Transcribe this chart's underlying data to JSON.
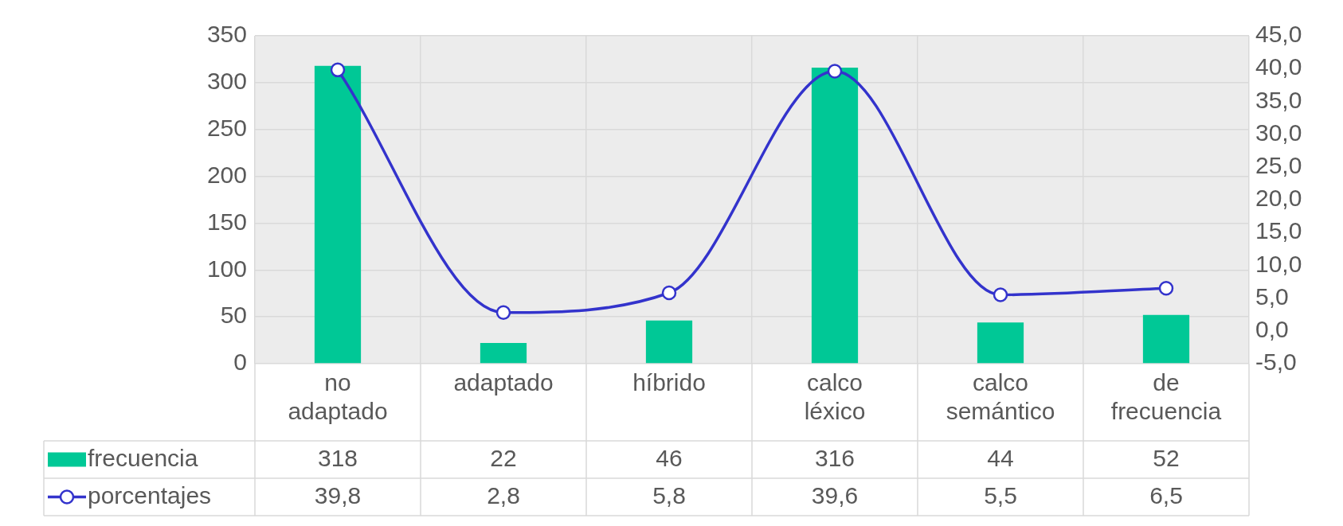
{
  "chart_data": {
    "type": "bar",
    "categories": [
      "no adaptado",
      "adaptado",
      "híbrido",
      "calco léxico",
      "calco semántico",
      "de frecuencia"
    ],
    "series": [
      {
        "name": "frecuencia",
        "color": "#00c896",
        "values": [
          318,
          22,
          46,
          316,
          44,
          52
        ],
        "value_labels": [
          "318",
          "22",
          "46",
          "316",
          "44",
          "52"
        ]
      },
      {
        "name": "porcentajes",
        "type": "line",
        "axis": "y2",
        "color": "#3333cc",
        "values": [
          39.8,
          2.8,
          5.8,
          39.6,
          5.5,
          6.5
        ],
        "value_labels": [
          "39,8",
          "2,8",
          "5,8",
          "39,6",
          "5,5",
          "6,5"
        ]
      }
    ],
    "ylim": [
      0,
      350
    ],
    "yticks": [
      0,
      50,
      100,
      150,
      200,
      250,
      300,
      350
    ],
    "y2lim": [
      -5,
      45
    ],
    "y2ticks": [
      {
        "value": -5,
        "label": "-5,0"
      },
      {
        "value": 0,
        "label": "0,0"
      },
      {
        "value": 5,
        "label": "5,0"
      },
      {
        "value": 10,
        "label": "10,0"
      },
      {
        "value": 15,
        "label": "15,0"
      },
      {
        "value": 20,
        "label": "20,0"
      },
      {
        "value": 25,
        "label": "25,0"
      },
      {
        "value": 30,
        "label": "30,0"
      },
      {
        "value": 35,
        "label": "35,0"
      },
      {
        "value": 40,
        "label": "40,0"
      },
      {
        "value": 45,
        "label": "45,0"
      }
    ],
    "grid": true,
    "legend": "bottom left",
    "marker": "circle"
  }
}
